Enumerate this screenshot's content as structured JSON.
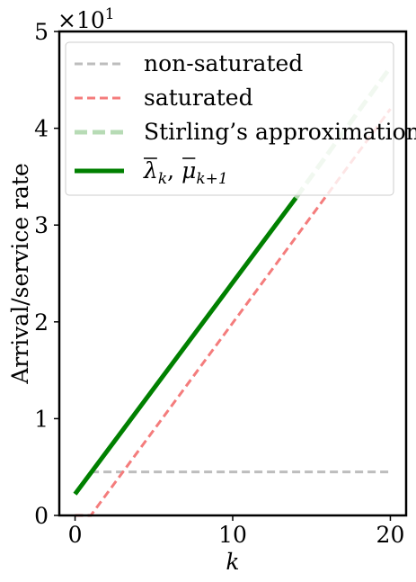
{
  "chart_data": {
    "type": "line",
    "title": "",
    "xlabel": "k",
    "ylabel": "Arrival/service rate",
    "xlim": [
      -1,
      21
    ],
    "ylim": [
      0,
      5
    ],
    "y_scale_factor": "×10",
    "y_scale_exponent": "1",
    "x_ticks": [
      0,
      10,
      20
    ],
    "y_ticks": [
      0,
      1,
      2,
      3,
      4,
      5
    ],
    "grid": false,
    "legend_position": "top",
    "series": [
      {
        "name": "non-saturated",
        "style": "dashed",
        "color": "#bdbdbd",
        "x": [
          1,
          20
        ],
        "y": [
          0.45,
          0.45
        ]
      },
      {
        "name": "saturated",
        "style": "dashed",
        "color": "#f47c7c",
        "x": [
          0,
          1,
          20
        ],
        "y": [
          0,
          0,
          4.2
        ]
      },
      {
        "name": "Stirling’s approximation",
        "style": "dashed-thick",
        "color": "#b7dbb5",
        "x": [
          14,
          20
        ],
        "y": [
          3.28,
          4.63
        ]
      },
      {
        "name": "λ̄k, μ̄k+1",
        "style": "solid",
        "color": "#008000",
        "x": [
          0,
          14
        ],
        "y": [
          0.22,
          3.28
        ]
      }
    ],
    "legend": {
      "entries": [
        "non-saturated",
        "saturated",
        "Stirling’s approximation"
      ],
      "math_entry": {
        "lambda": "λ",
        "lambda_sub": "k",
        "sep": ", ",
        "mu": "μ",
        "mu_sub": "k+1"
      }
    }
  }
}
